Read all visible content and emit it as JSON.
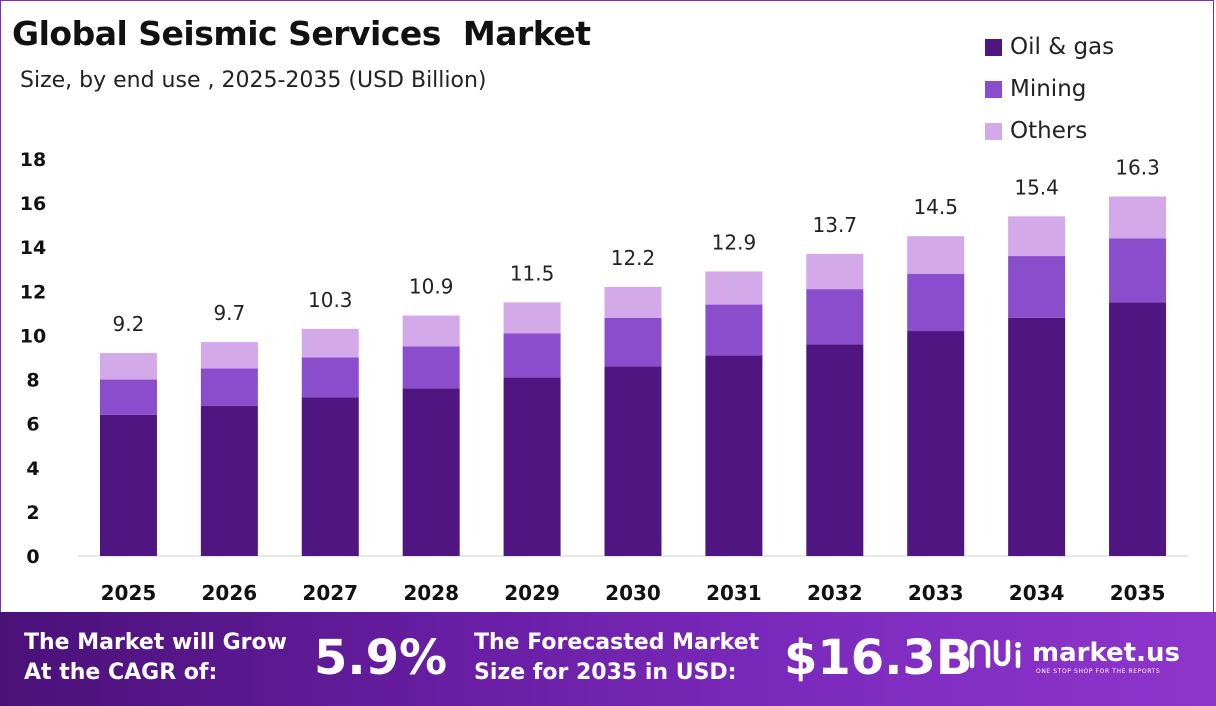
{
  "header": {
    "title": "Global Seismic Services  Market",
    "subtitle": "Size, by end use , 2025-2035 (USD Billion)"
  },
  "legend": [
    {
      "label": "Oil & gas",
      "color": "#4f1681"
    },
    {
      "label": "Mining",
      "color": "#8a4dcb"
    },
    {
      "label": "Others",
      "color": "#d3a9ea"
    }
  ],
  "chart_data": {
    "type": "bar",
    "stacked": true,
    "categories": [
      "2025",
      "2026",
      "2027",
      "2028",
      "2029",
      "2030",
      "2031",
      "2032",
      "2033",
      "2034",
      "2035"
    ],
    "series": [
      {
        "name": "Oil & gas",
        "color": "#4f1681",
        "values": [
          6.4,
          6.8,
          7.2,
          7.6,
          8.1,
          8.6,
          9.1,
          9.6,
          10.2,
          10.8,
          11.5
        ]
      },
      {
        "name": "Mining",
        "color": "#8a4dcb",
        "values": [
          1.6,
          1.7,
          1.8,
          1.9,
          2.0,
          2.2,
          2.3,
          2.5,
          2.6,
          2.8,
          2.9
        ]
      },
      {
        "name": "Others",
        "color": "#d3a9ea",
        "values": [
          1.2,
          1.2,
          1.3,
          1.4,
          1.4,
          1.4,
          1.5,
          1.6,
          1.7,
          1.8,
          1.9
        ]
      }
    ],
    "totals": [
      "9.2",
      "9.7",
      "10.3",
      "10.9",
      "11.5",
      "12.2",
      "12.9",
      "13.7",
      "14.5",
      "15.4",
      "16.3"
    ],
    "yticks": [
      0,
      2,
      4,
      6,
      8,
      10,
      12,
      14,
      16,
      18
    ],
    "ylim": [
      0,
      18
    ],
    "grid": false,
    "legend_position": "top-right"
  },
  "banner": {
    "cagr_label_line1": "The Market will Grow",
    "cagr_label_line2": "At the CAGR of:",
    "cagr_value": "5.9%",
    "forecast_label_line1": "The Forecasted Market",
    "forecast_label_line2": "Size for 2035 in USD:",
    "forecast_value": "$16.3B",
    "brand_name": "market.us",
    "brand_tagline": "ONE STOP SHOP FOR THE REPORTS"
  }
}
